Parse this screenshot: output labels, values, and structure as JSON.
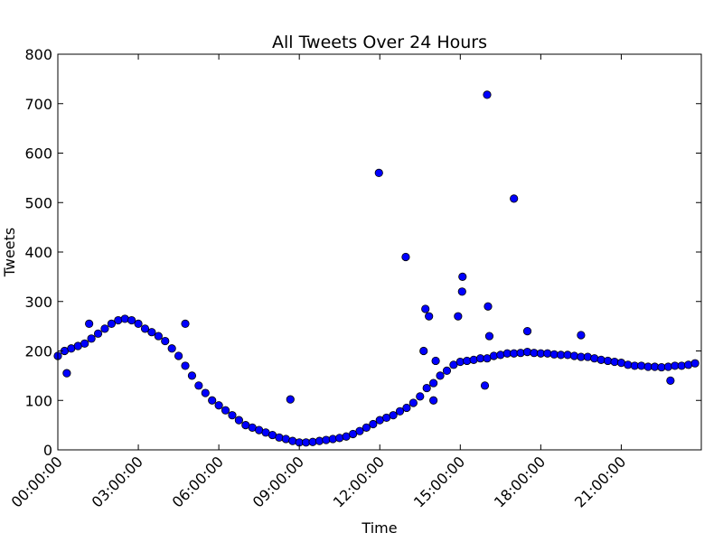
{
  "chart_data": {
    "type": "scatter",
    "title": "All Tweets Over 24 Hours",
    "xlabel": "Time",
    "ylabel": "Tweets",
    "xlim": [
      "00:00:00",
      "23:59:00"
    ],
    "ylim": [
      0,
      800
    ],
    "x_ticks": [
      "00:00:00",
      "03:00:00",
      "06:00:00",
      "09:00:00",
      "12:00:00",
      "15:00:00",
      "18:00:00",
      "21:00:00"
    ],
    "y_ticks": [
      0,
      100,
      200,
      300,
      400,
      500,
      600,
      700,
      800
    ],
    "grid": false,
    "marker_color": "#0000ff",
    "marker_edge": "#000000",
    "series": [
      {
        "x": [
          "00:00:00",
          "00:15:00",
          "00:30:00",
          "00:45:00",
          "01:00:00",
          "01:15:00",
          "01:30:00",
          "01:45:00",
          "02:00:00",
          "02:15:00",
          "02:30:00",
          "02:45:00",
          "03:00:00",
          "03:15:00",
          "03:30:00",
          "03:45:00",
          "04:00:00",
          "04:15:00",
          "04:30:00",
          "04:45:00",
          "05:00:00",
          "05:15:00",
          "05:30:00",
          "05:45:00",
          "06:00:00",
          "06:15:00",
          "06:30:00",
          "06:45:00",
          "07:00:00",
          "07:15:00",
          "07:30:00",
          "07:45:00",
          "08:00:00",
          "08:15:00",
          "08:30:00",
          "08:45:00",
          "09:00:00",
          "09:15:00",
          "09:30:00",
          "09:45:00",
          "10:00:00",
          "10:15:00",
          "10:30:00",
          "10:45:00",
          "11:00:00",
          "11:15:00",
          "11:30:00",
          "11:45:00",
          "12:00:00",
          "12:15:00",
          "12:30:00",
          "12:45:00",
          "13:00:00",
          "13:15:00",
          "13:30:00",
          "13:45:00",
          "14:00:00",
          "14:15:00",
          "14:30:00",
          "14:45:00",
          "15:00:00",
          "15:15:00",
          "15:30:00",
          "15:45:00",
          "16:00:00",
          "16:15:00",
          "16:30:00",
          "16:45:00",
          "17:00:00",
          "17:15:00",
          "17:30:00",
          "17:45:00",
          "18:00:00",
          "18:15:00",
          "18:30:00",
          "18:45:00",
          "19:00:00",
          "19:15:00",
          "19:30:00",
          "19:45:00",
          "20:00:00",
          "20:15:00",
          "20:30:00",
          "20:45:00",
          "21:00:00",
          "21:15:00",
          "21:30:00",
          "21:45:00",
          "22:00:00",
          "22:15:00",
          "22:30:00",
          "22:45:00",
          "23:00:00",
          "23:15:00",
          "23:30:00",
          "23:45:00",
          "11:58:00",
          "12:58:00",
          "13:50:00",
          "13:42:00",
          "13:38:00",
          "14:05:00",
          "15:05:00",
          "15:04:00",
          "14:55:00",
          "16:00:00",
          "16:02:00",
          "16:05:00",
          "17:00:00",
          "17:30:00",
          "08:40:00",
          "00:20:00",
          "01:10:00",
          "04:45:00",
          "22:50:00",
          "19:30:00",
          "14:00:00",
          "15:55:00"
        ],
        "y": [
          190,
          200,
          205,
          210,
          215,
          225,
          235,
          245,
          255,
          262,
          265,
          262,
          255,
          245,
          238,
          230,
          220,
          205,
          190,
          170,
          150,
          130,
          115,
          100,
          90,
          80,
          70,
          60,
          50,
          45,
          40,
          35,
          30,
          25,
          22,
          18,
          15,
          15,
          16,
          18,
          20,
          22,
          24,
          27,
          32,
          38,
          45,
          52,
          60,
          65,
          70,
          78,
          85,
          95,
          108,
          125,
          135,
          150,
          160,
          172,
          178,
          180,
          182,
          185,
          185,
          190,
          192,
          195,
          195,
          196,
          198,
          196,
          195,
          195,
          193,
          192,
          192,
          190,
          188,
          188,
          185,
          182,
          180,
          178,
          176,
          172,
          170,
          170,
          168,
          168,
          167,
          168,
          170,
          170,
          172,
          175,
          560,
          390,
          270,
          285,
          200,
          180,
          350,
          320,
          270,
          718,
          290,
          230,
          508,
          240,
          102,
          155,
          255,
          255,
          140,
          232,
          100,
          130
        ]
      }
    ]
  }
}
